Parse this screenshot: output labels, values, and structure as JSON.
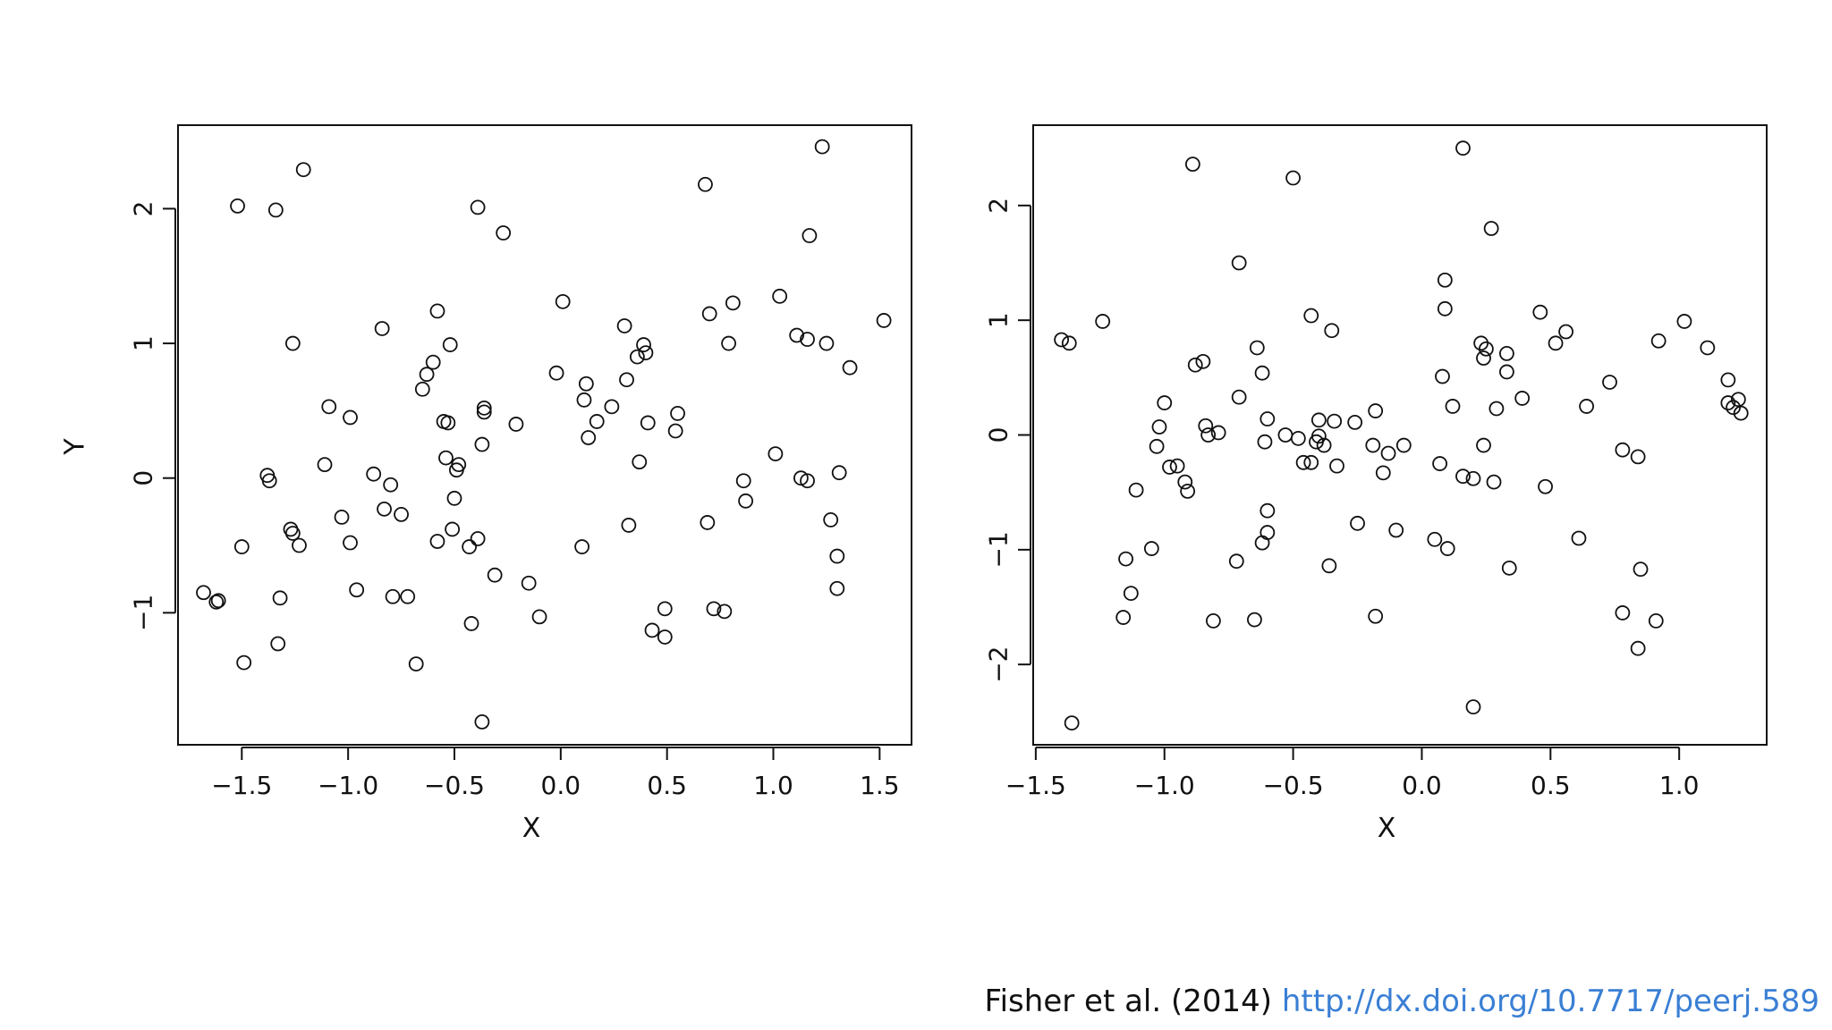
{
  "citation": {
    "text": "Fisher et al. (2014)",
    "link": "http://dx.doi.org/10.7717/peerj.589"
  },
  "chart_data": [
    {
      "type": "scatter",
      "xlabel": "X",
      "ylabel": "Y",
      "xlim": [
        -1.8,
        1.65
      ],
      "ylim": [
        -1.98,
        2.62
      ],
      "xticks": [
        -1.5,
        -1.0,
        -0.5,
        0.0,
        0.5,
        1.0,
        1.5
      ],
      "xtick_labels": [
        "−1.5",
        "−1.0",
        "−0.5",
        "0.0",
        "0.5",
        "1.0",
        "1.5"
      ],
      "yticks": [
        -1,
        0,
        1,
        2
      ],
      "ytick_labels": [
        "−1",
        "0",
        "1",
        "2"
      ],
      "grid": false,
      "points": [
        [
          -1.68,
          -0.85
        ],
        [
          -1.62,
          -0.92
        ],
        [
          -1.61,
          -0.91
        ],
        [
          -1.52,
          2.02
        ],
        [
          -1.5,
          -0.51
        ],
        [
          -1.49,
          -1.37
        ],
        [
          -1.38,
          0.02
        ],
        [
          -1.37,
          -0.02
        ],
        [
          -1.34,
          1.99
        ],
        [
          -1.33,
          -1.23
        ],
        [
          -1.32,
          -0.89
        ],
        [
          -1.27,
          -0.38
        ],
        [
          -1.26,
          -0.41
        ],
        [
          -1.26,
          1.0
        ],
        [
          -1.23,
          -0.5
        ],
        [
          -1.21,
          2.29
        ],
        [
          -1.11,
          0.1
        ],
        [
          -1.09,
          0.53
        ],
        [
          -1.03,
          -0.29
        ],
        [
          -0.99,
          0.45
        ],
        [
          -0.99,
          -0.48
        ],
        [
          -0.96,
          -0.83
        ],
        [
          -0.88,
          0.03
        ],
        [
          -0.84,
          1.11
        ],
        [
          -0.83,
          -0.23
        ],
        [
          -0.8,
          -0.05
        ],
        [
          -0.79,
          -0.88
        ],
        [
          -0.75,
          -0.27
        ],
        [
          -0.72,
          -0.88
        ],
        [
          -0.68,
          -1.38
        ],
        [
          -0.65,
          0.66
        ],
        [
          -0.63,
          0.77
        ],
        [
          -0.6,
          0.86
        ],
        [
          -0.58,
          1.24
        ],
        [
          -0.58,
          -0.47
        ],
        [
          -0.55,
          0.42
        ],
        [
          -0.53,
          0.41
        ],
        [
          -0.54,
          0.15
        ],
        [
          -0.52,
          0.99
        ],
        [
          -0.51,
          -0.38
        ],
        [
          -0.5,
          -0.15
        ],
        [
          -0.49,
          0.06
        ],
        [
          -0.48,
          0.1
        ],
        [
          -0.43,
          -0.51
        ],
        [
          -0.42,
          -1.08
        ],
        [
          -0.39,
          -0.45
        ],
        [
          -0.39,
          2.01
        ],
        [
          -0.37,
          -1.81
        ],
        [
          -0.37,
          0.25
        ],
        [
          -0.36,
          0.52
        ],
        [
          -0.36,
          0.49
        ],
        [
          -0.31,
          -0.72
        ],
        [
          -0.27,
          1.82
        ],
        [
          -0.21,
          0.4
        ],
        [
          -0.15,
          -0.78
        ],
        [
          -0.1,
          -1.03
        ],
        [
          -0.02,
          0.78
        ],
        [
          0.01,
          1.31
        ],
        [
          0.1,
          -0.51
        ],
        [
          0.11,
          0.58
        ],
        [
          0.12,
          0.7
        ],
        [
          0.13,
          0.3
        ],
        [
          0.17,
          0.42
        ],
        [
          0.24,
          0.53
        ],
        [
          0.3,
          1.13
        ],
        [
          0.31,
          0.73
        ],
        [
          0.32,
          -0.35
        ],
        [
          0.36,
          0.9
        ],
        [
          0.37,
          0.12
        ],
        [
          0.39,
          0.99
        ],
        [
          0.4,
          0.93
        ],
        [
          0.41,
          0.41
        ],
        [
          0.43,
          -1.13
        ],
        [
          0.49,
          -0.97
        ],
        [
          0.49,
          -1.18
        ],
        [
          0.54,
          0.35
        ],
        [
          0.55,
          0.48
        ],
        [
          0.68,
          2.18
        ],
        [
          0.69,
          -0.33
        ],
        [
          0.7,
          1.22
        ],
        [
          0.72,
          -0.97
        ],
        [
          0.77,
          -0.99
        ],
        [
          0.79,
          1.0
        ],
        [
          0.81,
          1.3
        ],
        [
          0.86,
          -0.02
        ],
        [
          0.87,
          -0.17
        ],
        [
          1.01,
          0.18
        ],
        [
          1.03,
          1.35
        ],
        [
          1.11,
          1.06
        ],
        [
          1.13,
          0.0
        ],
        [
          1.16,
          1.03
        ],
        [
          1.16,
          -0.02
        ],
        [
          1.17,
          1.8
        ],
        [
          1.23,
          2.46
        ],
        [
          1.25,
          1.0
        ],
        [
          1.27,
          -0.31
        ],
        [
          1.3,
          -0.58
        ],
        [
          1.3,
          -0.82
        ],
        [
          1.31,
          0.04
        ],
        [
          1.36,
          0.82
        ],
        [
          1.52,
          1.17
        ]
      ]
    },
    {
      "type": "scatter",
      "xlabel": "X",
      "ylabel": "",
      "xlim": [
        -1.51,
        1.34
      ],
      "ylim": [
        -2.7,
        2.7
      ],
      "xticks": [
        -1.5,
        -1.0,
        -0.5,
        0.0,
        0.5,
        1.0
      ],
      "xtick_labels": [
        "−1.5",
        "−1.0",
        "−0.5",
        "0.0",
        "0.5",
        "1.0"
      ],
      "yticks": [
        -2,
        -1,
        0,
        1,
        2
      ],
      "ytick_labels": [
        "−2",
        "−1",
        "0",
        "1",
        "2"
      ],
      "grid": false,
      "points": [
        [
          -1.4,
          0.83
        ],
        [
          -1.37,
          0.8
        ],
        [
          -1.36,
          -2.51
        ],
        [
          -1.24,
          0.99
        ],
        [
          -1.16,
          -1.59
        ],
        [
          -1.15,
          -1.08
        ],
        [
          -1.13,
          -1.38
        ],
        [
          -1.11,
          -0.48
        ],
        [
          -1.05,
          -0.99
        ],
        [
          -1.03,
          -0.1
        ],
        [
          -1.02,
          0.07
        ],
        [
          -1.0,
          0.28
        ],
        [
          -0.98,
          -0.28
        ],
        [
          -0.95,
          -0.27
        ],
        [
          -0.92,
          -0.41
        ],
        [
          -0.91,
          -0.49
        ],
        [
          -0.89,
          2.36
        ],
        [
          -0.88,
          0.61
        ],
        [
          -0.85,
          0.64
        ],
        [
          -0.84,
          0.08
        ],
        [
          -0.83,
          0.0
        ],
        [
          -0.81,
          -1.62
        ],
        [
          -0.79,
          0.02
        ],
        [
          -0.72,
          -1.1
        ],
        [
          -0.71,
          0.33
        ],
        [
          -0.71,
          1.5
        ],
        [
          -0.65,
          -1.61
        ],
        [
          -0.64,
          0.76
        ],
        [
          -0.62,
          0.54
        ],
        [
          -0.62,
          -0.94
        ],
        [
          -0.61,
          -0.06
        ],
        [
          -0.6,
          0.14
        ],
        [
          -0.6,
          -0.85
        ],
        [
          -0.6,
          -0.66
        ],
        [
          -0.53,
          0.0
        ],
        [
          -0.5,
          2.24
        ],
        [
          -0.48,
          -0.03
        ],
        [
          -0.46,
          -0.24
        ],
        [
          -0.43,
          -0.24
        ],
        [
          -0.43,
          1.04
        ],
        [
          -0.41,
          -0.06
        ],
        [
          -0.4,
          0.13
        ],
        [
          -0.4,
          -0.01
        ],
        [
          -0.38,
          -0.09
        ],
        [
          -0.36,
          -1.14
        ],
        [
          -0.35,
          0.91
        ],
        [
          -0.34,
          0.12
        ],
        [
          -0.33,
          -0.27
        ],
        [
          -0.26,
          0.11
        ],
        [
          -0.25,
          -0.77
        ],
        [
          -0.19,
          -0.09
        ],
        [
          -0.18,
          0.21
        ],
        [
          -0.18,
          -1.58
        ],
        [
          -0.15,
          -0.33
        ],
        [
          -0.13,
          -0.16
        ],
        [
          -0.1,
          -0.83
        ],
        [
          -0.07,
          -0.09
        ],
        [
          0.05,
          -0.91
        ],
        [
          0.07,
          -0.25
        ],
        [
          0.08,
          0.51
        ],
        [
          0.09,
          1.35
        ],
        [
          0.09,
          1.1
        ],
        [
          0.1,
          -0.99
        ],
        [
          0.12,
          0.25
        ],
        [
          0.16,
          -0.36
        ],
        [
          0.16,
          2.5
        ],
        [
          0.2,
          -0.38
        ],
        [
          0.2,
          -2.37
        ],
        [
          0.23,
          0.8
        ],
        [
          0.24,
          0.67
        ],
        [
          0.24,
          -0.09
        ],
        [
          0.25,
          0.75
        ],
        [
          0.27,
          1.8
        ],
        [
          0.28,
          -0.41
        ],
        [
          0.29,
          0.23
        ],
        [
          0.33,
          0.71
        ],
        [
          0.33,
          0.55
        ],
        [
          0.34,
          -1.16
        ],
        [
          0.39,
          0.32
        ],
        [
          0.46,
          1.07
        ],
        [
          0.48,
          -0.45
        ],
        [
          0.52,
          0.8
        ],
        [
          0.56,
          0.9
        ],
        [
          0.61,
          -0.9
        ],
        [
          0.64,
          0.25
        ],
        [
          0.73,
          0.46
        ],
        [
          0.78,
          -0.13
        ],
        [
          0.78,
          -1.55
        ],
        [
          0.84,
          -0.19
        ],
        [
          0.84,
          -1.86
        ],
        [
          0.85,
          -1.17
        ],
        [
          0.91,
          -1.62
        ],
        [
          0.92,
          0.82
        ],
        [
          1.02,
          0.99
        ],
        [
          1.11,
          0.76
        ],
        [
          1.19,
          0.48
        ],
        [
          1.19,
          0.28
        ],
        [
          1.21,
          0.24
        ],
        [
          1.23,
          0.31
        ],
        [
          1.24,
          0.19
        ]
      ]
    }
  ]
}
